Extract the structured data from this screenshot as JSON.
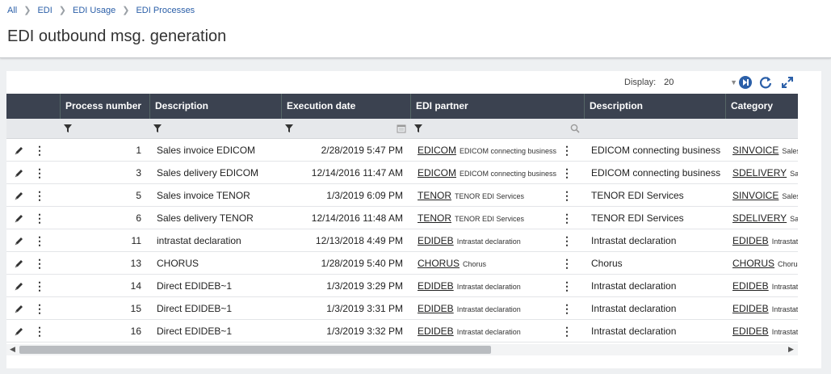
{
  "breadcrumb": [
    "All",
    "EDI",
    "EDI Usage",
    "EDI Processes"
  ],
  "page_title": "EDI outbound msg. generation",
  "display": {
    "label": "Display:",
    "value": "20"
  },
  "columns": [
    "Process number",
    "Description",
    "Execution date",
    "EDI partner",
    "Description",
    "Category code"
  ],
  "rows": [
    {
      "num": "1",
      "desc": "Sales invoice EDICOM",
      "date": "2/28/2019 5:47 PM",
      "partner": "EDICOM",
      "partner_desc": "EDICOM connecting business",
      "desc2": "EDICOM connecting business",
      "cat": "SINVOICE",
      "cat_desc": "Sales in"
    },
    {
      "num": "3",
      "desc": "Sales delivery EDICOM",
      "date": "12/14/2016 11:47 AM",
      "partner": "EDICOM",
      "partner_desc": "EDICOM connecting business",
      "desc2": "EDICOM connecting business",
      "cat": "SDELIVERY",
      "cat_desc": "Sales"
    },
    {
      "num": "5",
      "desc": "Sales invoice TENOR",
      "date": "1/3/2019 6:09 PM",
      "partner": "TENOR",
      "partner_desc": "TENOR EDI Services",
      "desc2": "TENOR EDI Services",
      "cat": "SINVOICE",
      "cat_desc": "Sales in"
    },
    {
      "num": "6",
      "desc": "Sales delivery TENOR",
      "date": "12/14/2016 11:48 AM",
      "partner": "TENOR",
      "partner_desc": "TENOR EDI Services",
      "desc2": "TENOR EDI Services",
      "cat": "SDELIVERY",
      "cat_desc": "Sales"
    },
    {
      "num": "11",
      "desc": "intrastat declaration",
      "date": "12/13/2018 4:49 PM",
      "partner": "EDIDEB",
      "partner_desc": "Intrastat declaration",
      "desc2": "Intrastat declaration",
      "cat": "EDIDEB",
      "cat_desc": "Intrastat"
    },
    {
      "num": "13",
      "desc": "CHORUS",
      "date": "1/28/2019 5:40 PM",
      "partner": "CHORUS",
      "partner_desc": "Chorus",
      "desc2": "Chorus",
      "cat": "CHORUS",
      "cat_desc": "Chorus"
    },
    {
      "num": "14",
      "desc": "Direct EDIDEB~1",
      "date": "1/3/2019 3:29 PM",
      "partner": "EDIDEB",
      "partner_desc": "Intrastat declaration",
      "desc2": "Intrastat declaration",
      "cat": "EDIDEB",
      "cat_desc": "Intrastat"
    },
    {
      "num": "15",
      "desc": "Direct EDIDEB~1",
      "date": "1/3/2019 3:31 PM",
      "partner": "EDIDEB",
      "partner_desc": "Intrastat declaration",
      "desc2": "Intrastat declaration",
      "cat": "EDIDEB",
      "cat_desc": "Intrastat"
    },
    {
      "num": "16",
      "desc": "Direct EDIDEB~1",
      "date": "1/3/2019 3:32 PM",
      "partner": "EDIDEB",
      "partner_desc": "Intrastat declaration",
      "desc2": "Intrastat declaration",
      "cat": "EDIDEB",
      "cat_desc": "Intrastat"
    }
  ],
  "colors": {
    "header_bg": "#3b4250",
    "accent": "#2b5fa8"
  }
}
